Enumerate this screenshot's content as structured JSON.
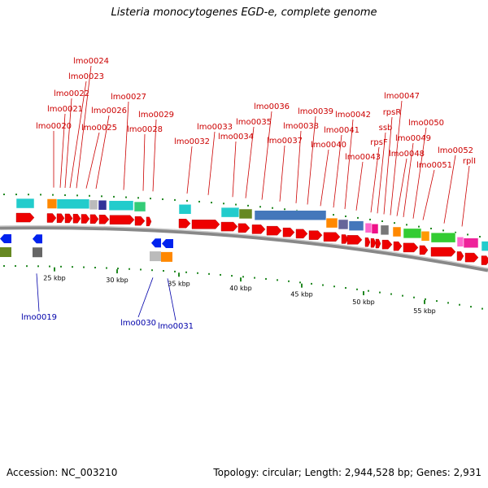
{
  "title": "Listeria monocytogenes EGD-e, complete genome",
  "footer": {
    "accession": "Accession: NC_003210",
    "topology": "Topology: circular; Length: 2,944,528 bp; Genes: 2,931"
  },
  "colors": {
    "forward_gene": "#ee0000",
    "reverse_gene": "#0022ee",
    "backbone": "#888888",
    "tick": "#228822",
    "top_label": "#cc0000",
    "bottom_label": "#0000aa"
  },
  "scale": {
    "unit": "kbp",
    "ticks": [
      "25 kbp",
      "30 kbp",
      "35 kbp",
      "40 kbp",
      "45 kbp",
      "50 kbp",
      "55 kbp"
    ]
  },
  "top_labels": [
    "lmo0020",
    "lmo0021",
    "lmo0022",
    "lmo0023",
    "lmo0024",
    "lmo0025",
    "lmo0026",
    "lmo0027",
    "lmo0028",
    "lmo0029",
    "lmo0032",
    "lmo0033",
    "lmo0034",
    "lmo0035",
    "lmo0036",
    "lmo0037",
    "lmo0038",
    "lmo0039",
    "lmo0040",
    "lmo0041",
    "lmo0042",
    "lmo0043",
    "rpsF",
    "ssb",
    "rpsR",
    "lmo0047",
    "lmo0048",
    "lmo0049",
    "lmo0050",
    "lmo0051",
    "lmo0052",
    "rplI"
  ],
  "bottom_labels": [
    "lmo0019",
    "lmo0030",
    "lmo0031"
  ]
}
